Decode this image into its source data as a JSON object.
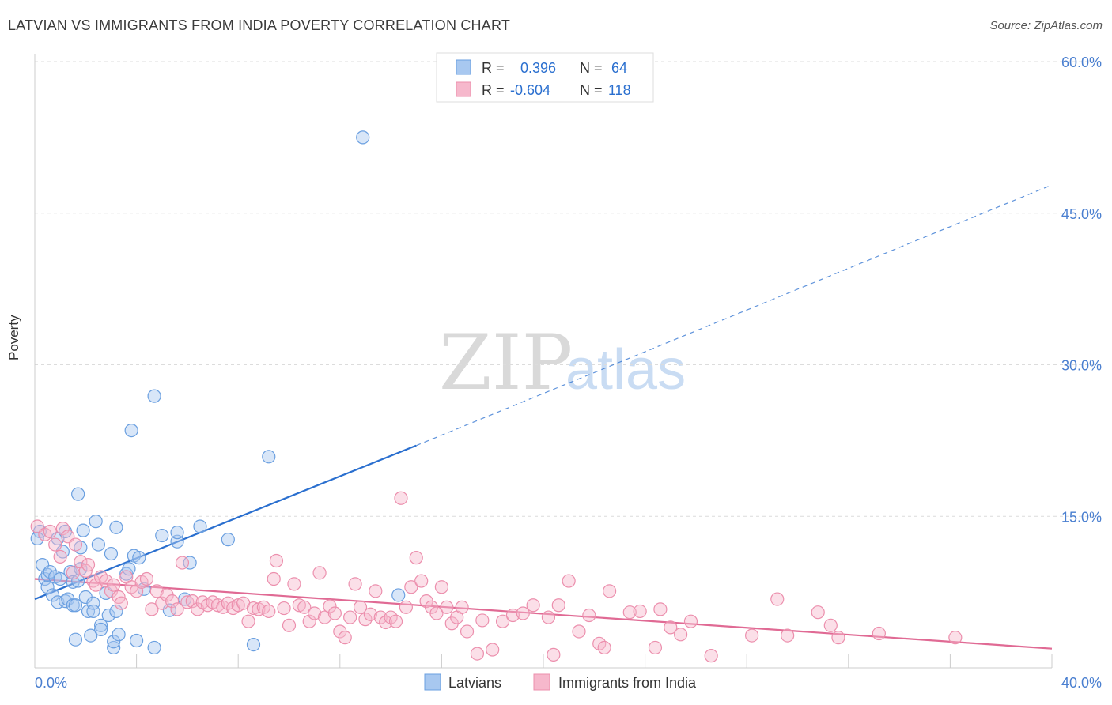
{
  "title": "LATVIAN VS IMMIGRANTS FROM INDIA POVERTY CORRELATION CHART",
  "source": "Source: ZipAtlas.com",
  "watermark": {
    "zip": "ZIP",
    "atlas": "atlas"
  },
  "chart_data": {
    "type": "scatter",
    "title": "LATVIAN VS IMMIGRANTS FROM INDIA POVERTY CORRELATION CHART",
    "ylabel": "Poverty",
    "xlabel": "",
    "xlim": [
      0,
      40
    ],
    "ylim": [
      0,
      60
    ],
    "x_tick_labels": [
      "0.0%",
      "40.0%"
    ],
    "y_tick_labels": [
      "15.0%",
      "30.0%",
      "45.0%",
      "60.0%"
    ],
    "y_ticks": [
      15,
      30,
      45,
      60
    ],
    "grid": true,
    "legend_position": "top-center",
    "legend": [
      {
        "name": "Latvians",
        "r_label": "R =",
        "r_value": "0.396",
        "n_label": "N =",
        "n_value": "64"
      },
      {
        "name": "Immigrants from India",
        "r_label": "R =",
        "r_value": "-0.604",
        "n_label": "N =",
        "n_value": "118"
      }
    ],
    "colors": {
      "latvians_fill": "#a8c8f0",
      "latvians_stroke": "#6a9fe0",
      "latvians_line": "#2a6fcf",
      "india_fill": "#f6b8cc",
      "india_stroke": "#ec8fad",
      "india_line": "#e06a94",
      "tick_text": "#4a7fd0",
      "value_text": "#2a6fcf"
    },
    "series": [
      {
        "name": "Latvians",
        "trend": {
          "x0": 0,
          "y0": 6.8,
          "x1": 15,
          "y1": 22.0,
          "dash_x1": 40,
          "dash_y1": 47.8
        },
        "points": [
          [
            0.2,
            13.5
          ],
          [
            0.3,
            10.2
          ],
          [
            0.4,
            8.8
          ],
          [
            0.5,
            8.0
          ],
          [
            0.5,
            9.2
          ],
          [
            0.6,
            9.5
          ],
          [
            0.7,
            7.2
          ],
          [
            0.8,
            9.0
          ],
          [
            0.9,
            12.8
          ],
          [
            0.9,
            6.5
          ],
          [
            1.0,
            8.8
          ],
          [
            1.1,
            11.5
          ],
          [
            1.2,
            6.6
          ],
          [
            1.3,
            6.8
          ],
          [
            1.2,
            13.5
          ],
          [
            1.4,
            9.5
          ],
          [
            1.5,
            6.2
          ],
          [
            1.6,
            6.2
          ],
          [
            1.5,
            8.5
          ],
          [
            1.7,
            17.2
          ],
          [
            1.7,
            8.6
          ],
          [
            1.8,
            9.8
          ],
          [
            1.6,
            2.8
          ],
          [
            1.8,
            11.9
          ],
          [
            1.9,
            13.6
          ],
          [
            2.0,
            7.0
          ],
          [
            2.1,
            5.6
          ],
          [
            2.2,
            3.2
          ],
          [
            2.3,
            6.4
          ],
          [
            2.3,
            5.6
          ],
          [
            2.4,
            14.5
          ],
          [
            2.5,
            12.2
          ],
          [
            2.6,
            4.2
          ],
          [
            2.6,
            3.8
          ],
          [
            2.8,
            7.4
          ],
          [
            2.9,
            5.2
          ],
          [
            3.0,
            11.3
          ],
          [
            3.1,
            2.0
          ],
          [
            3.1,
            2.6
          ],
          [
            3.2,
            5.6
          ],
          [
            3.2,
            13.9
          ],
          [
            3.3,
            3.3
          ],
          [
            3.6,
            9.3
          ],
          [
            3.7,
            9.8
          ],
          [
            3.8,
            23.5
          ],
          [
            3.9,
            11.1
          ],
          [
            4.0,
            2.7
          ],
          [
            4.1,
            10.9
          ],
          [
            4.3,
            7.8
          ],
          [
            4.7,
            26.9
          ],
          [
            4.7,
            2.0
          ],
          [
            5.0,
            13.1
          ],
          [
            5.3,
            5.7
          ],
          [
            5.6,
            12.5
          ],
          [
            5.6,
            13.4
          ],
          [
            5.9,
            6.8
          ],
          [
            6.1,
            10.4
          ],
          [
            6.5,
            14.0
          ],
          [
            7.6,
            12.7
          ],
          [
            8.6,
            2.3
          ],
          [
            9.2,
            20.9
          ],
          [
            12.9,
            52.5
          ],
          [
            14.3,
            7.2
          ],
          [
            0.1,
            12.8
          ]
        ]
      },
      {
        "name": "Immigrants from India",
        "trend": {
          "x0": 0,
          "y0": 8.8,
          "x1": 40,
          "y1": 1.9
        },
        "points": [
          [
            0.1,
            14.0
          ],
          [
            0.4,
            13.2
          ],
          [
            0.6,
            13.5
          ],
          [
            0.8,
            12.2
          ],
          [
            1.0,
            11.0
          ],
          [
            1.1,
            13.8
          ],
          [
            1.3,
            13.0
          ],
          [
            1.5,
            9.4
          ],
          [
            1.6,
            12.2
          ],
          [
            1.8,
            10.5
          ],
          [
            2.0,
            9.6
          ],
          [
            2.1,
            10.2
          ],
          [
            2.3,
            8.6
          ],
          [
            2.4,
            8.2
          ],
          [
            2.6,
            9.0
          ],
          [
            2.8,
            8.6
          ],
          [
            3.0,
            7.6
          ],
          [
            3.1,
            8.2
          ],
          [
            3.3,
            7.0
          ],
          [
            3.4,
            6.4
          ],
          [
            3.6,
            9.0
          ],
          [
            3.8,
            8.0
          ],
          [
            4.0,
            7.6
          ],
          [
            4.2,
            8.5
          ],
          [
            4.4,
            8.8
          ],
          [
            4.6,
            5.8
          ],
          [
            4.8,
            7.6
          ],
          [
            5.0,
            6.4
          ],
          [
            5.2,
            7.2
          ],
          [
            5.4,
            6.6
          ],
          [
            5.6,
            5.8
          ],
          [
            5.8,
            10.4
          ],
          [
            6.0,
            6.5
          ],
          [
            6.2,
            6.6
          ],
          [
            6.4,
            5.8
          ],
          [
            6.6,
            6.5
          ],
          [
            6.8,
            6.2
          ],
          [
            7.0,
            6.5
          ],
          [
            7.2,
            6.2
          ],
          [
            7.4,
            6.0
          ],
          [
            7.6,
            6.4
          ],
          [
            7.8,
            5.9
          ],
          [
            8.0,
            6.2
          ],
          [
            8.2,
            6.4
          ],
          [
            8.4,
            4.6
          ],
          [
            8.6,
            5.9
          ],
          [
            8.8,
            5.8
          ],
          [
            9.0,
            6.0
          ],
          [
            9.2,
            5.6
          ],
          [
            9.4,
            8.8
          ],
          [
            9.5,
            10.6
          ],
          [
            9.8,
            5.9
          ],
          [
            10.0,
            4.2
          ],
          [
            10.2,
            8.3
          ],
          [
            10.4,
            6.2
          ],
          [
            10.6,
            6.0
          ],
          [
            10.8,
            4.6
          ],
          [
            11.0,
            5.4
          ],
          [
            11.2,
            9.4
          ],
          [
            11.4,
            5.0
          ],
          [
            11.6,
            6.1
          ],
          [
            11.8,
            5.4
          ],
          [
            12.0,
            3.6
          ],
          [
            12.2,
            3.0
          ],
          [
            12.4,
            5.0
          ],
          [
            12.6,
            8.3
          ],
          [
            12.8,
            6.0
          ],
          [
            13.0,
            4.8
          ],
          [
            13.2,
            5.3
          ],
          [
            13.4,
            7.6
          ],
          [
            13.6,
            5.0
          ],
          [
            13.8,
            4.5
          ],
          [
            14.0,
            5.0
          ],
          [
            14.2,
            4.6
          ],
          [
            14.4,
            16.8
          ],
          [
            14.6,
            6.0
          ],
          [
            14.8,
            8.0
          ],
          [
            15.0,
            10.9
          ],
          [
            15.2,
            8.6
          ],
          [
            15.4,
            6.6
          ],
          [
            15.6,
            6.0
          ],
          [
            15.8,
            5.4
          ],
          [
            16.0,
            8.0
          ],
          [
            16.2,
            6.0
          ],
          [
            16.4,
            4.4
          ],
          [
            16.6,
            5.0
          ],
          [
            16.8,
            6.0
          ],
          [
            17.0,
            3.6
          ],
          [
            17.4,
            1.4
          ],
          [
            17.6,
            4.7
          ],
          [
            18.0,
            1.8
          ],
          [
            18.4,
            4.6
          ],
          [
            18.8,
            5.2
          ],
          [
            19.2,
            5.4
          ],
          [
            19.6,
            6.2
          ],
          [
            20.2,
            5.0
          ],
          [
            20.4,
            1.3
          ],
          [
            20.6,
            6.2
          ],
          [
            21.0,
            8.6
          ],
          [
            21.4,
            3.6
          ],
          [
            21.8,
            5.2
          ],
          [
            22.2,
            2.4
          ],
          [
            22.4,
            2.0
          ],
          [
            22.6,
            7.6
          ],
          [
            23.4,
            5.5
          ],
          [
            23.8,
            5.6
          ],
          [
            24.4,
            2.0
          ],
          [
            24.6,
            5.8
          ],
          [
            25.0,
            4.0
          ],
          [
            25.4,
            3.3
          ],
          [
            25.8,
            4.6
          ],
          [
            26.6,
            1.2
          ],
          [
            28.2,
            3.2
          ],
          [
            29.2,
            6.8
          ],
          [
            29.6,
            3.2
          ],
          [
            30.8,
            5.5
          ],
          [
            31.6,
            3.0
          ],
          [
            33.2,
            3.4
          ],
          [
            36.2,
            3.0
          ],
          [
            31.3,
            4.2
          ]
        ]
      }
    ]
  }
}
